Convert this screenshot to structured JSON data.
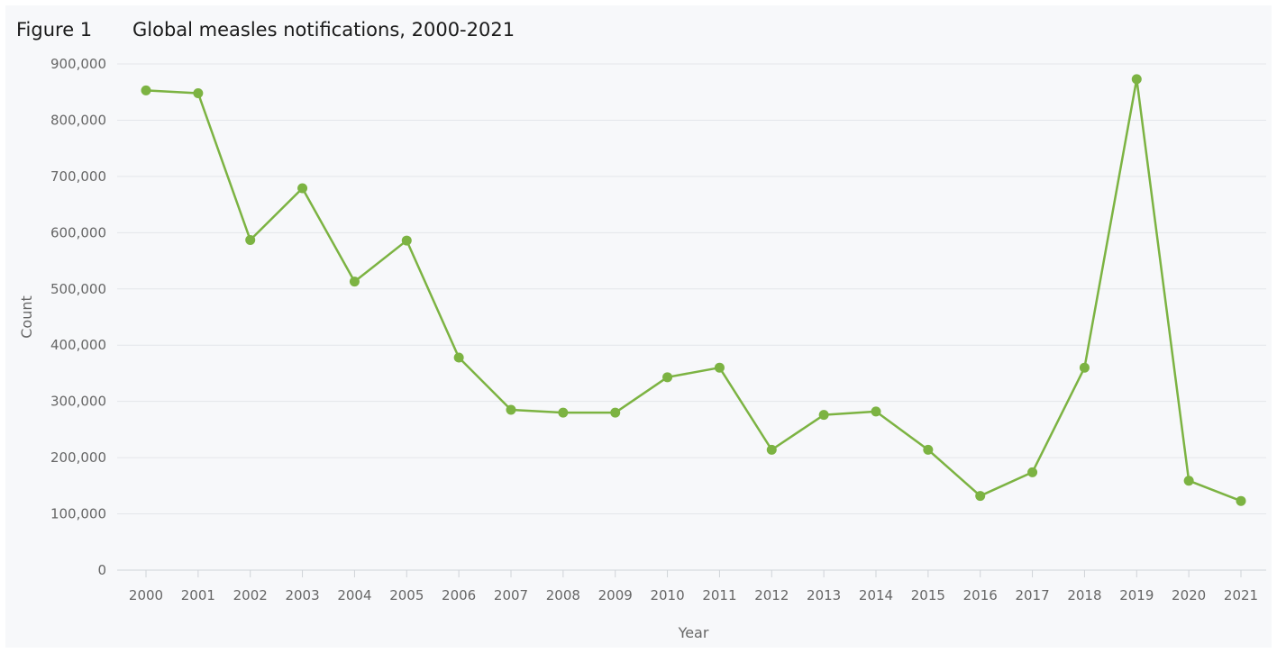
{
  "figure_label": "Figure 1",
  "chart_data": {
    "type": "line",
    "title": "Global measles notifications, 2000-2021",
    "xlabel": "Year",
    "ylabel": "Count",
    "ylim": [
      0,
      900000
    ],
    "yticks": [
      0,
      100000,
      200000,
      300000,
      400000,
      500000,
      600000,
      700000,
      800000,
      900000
    ],
    "ytick_labels": [
      "0",
      "100,000",
      "200,000",
      "300,000",
      "400,000",
      "500,000",
      "600,000",
      "700,000",
      "800,000",
      "900,000"
    ],
    "grid": true,
    "categories": [
      "2000",
      "2001",
      "2002",
      "2003",
      "2004",
      "2005",
      "2006",
      "2007",
      "2008",
      "2009",
      "2010",
      "2011",
      "2012",
      "2013",
      "2014",
      "2015",
      "2016",
      "2017",
      "2018",
      "2019",
      "2020",
      "2021"
    ],
    "series": [
      {
        "color": "#7cb342",
        "values": [
          853000,
          848000,
          587000,
          679000,
          513000,
          586000,
          378000,
          285000,
          280000,
          280000,
          343000,
          360000,
          214000,
          276000,
          282000,
          214000,
          132000,
          174000,
          360000,
          873000,
          159000,
          123000
        ]
      }
    ]
  }
}
